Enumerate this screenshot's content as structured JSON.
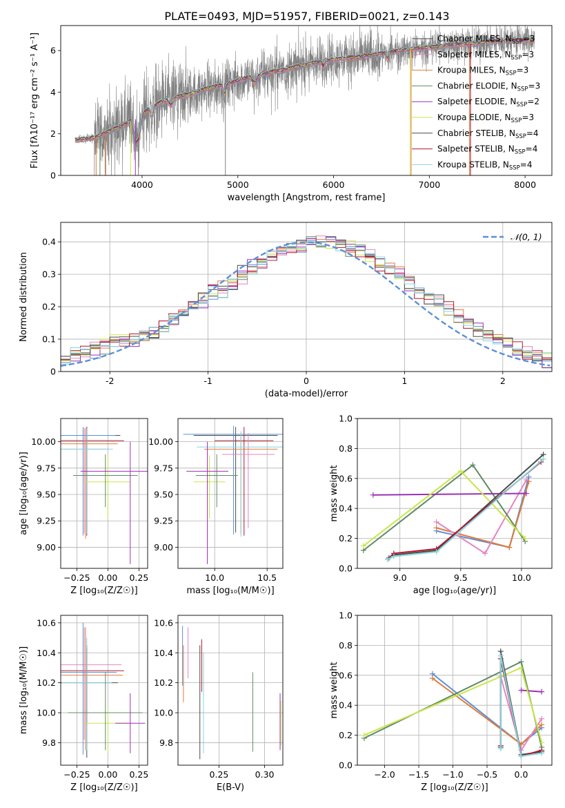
{
  "figure": {
    "title": "PLATE=0493, MJD=51957, FIBERID=0021, z=0.143"
  },
  "colors": {
    "c0": "#5b8fd6",
    "c1": "#e07b39",
    "c2": "#e584c0",
    "c3": "#5f8a63",
    "c4": "#9b2fb5",
    "c5": "#c8e64a",
    "c6": "#4a4a4a",
    "c7": "#b3172b",
    "c8": "#85d6df",
    "observed": "#808080",
    "gauss": "#5b8fd6"
  },
  "chart_data": [
    {
      "id": "spectrum",
      "type": "line",
      "xlabel": "wavelength [Angstrom, rest frame]",
      "ylabel": "Flux [fλ10⁻¹⁷ erg cm⁻² s⁻¹ A⁻¹]",
      "xlim": [
        3150,
        8280
      ],
      "ylim": [
        0,
        7.2
      ],
      "xticks": [
        4000,
        5000,
        6000,
        7000,
        8000
      ],
      "yticks": [
        0,
        2,
        4,
        6
      ],
      "grid": false,
      "legend_position": "top-right",
      "legend": [
        {
          "label": "Chabrier MILES, N",
          "sub": "SSP",
          "suffix": "=3",
          "color": "c6"
        },
        {
          "label": "Salpeter MILES, N",
          "sub": "SSP",
          "suffix": "=3",
          "color": "c2"
        },
        {
          "label": "Kroupa MILES, N",
          "sub": "SSP",
          "suffix": "=3",
          "color": "c1"
        },
        {
          "label": "Chabrier ELODIE, N",
          "sub": "SSP",
          "suffix": "=3",
          "color": "c3"
        },
        {
          "label": "Salpeter ELODIE, N",
          "sub": "SSP",
          "suffix": "=2",
          "color": "c4"
        },
        {
          "label": "Kroupa ELODIE, N",
          "sub": "SSP",
          "suffix": "=3",
          "color": "c5"
        },
        {
          "label": "Chabrier STELIB, N",
          "sub": "SSP",
          "suffix": "=4",
          "color": "c6"
        },
        {
          "label": "Salpeter STELIB, N",
          "sub": "SSP",
          "suffix": "=4",
          "color": "c7"
        },
        {
          "label": "Kroupa STELIB, N",
          "sub": "SSP",
          "suffix": "=4",
          "color": "c8"
        }
      ],
      "continuum_wavelength": [
        3300,
        3500,
        3700,
        3900,
        4100,
        4300,
        4500,
        4700,
        4900,
        5100,
        5300,
        5500,
        5700,
        5900,
        6100,
        6300,
        6500,
        6700,
        6900,
        7100,
        7300,
        7500,
        7700,
        7900,
        8100
      ],
      "continuum_flux": [
        1.7,
        1.8,
        2.2,
        2.6,
        3.3,
        3.7,
        3.9,
        4.2,
        4.4,
        4.7,
        4.9,
        5.1,
        5.3,
        5.5,
        5.6,
        5.7,
        5.85,
        6.0,
        6.1,
        6.2,
        6.3,
        6.35,
        6.45,
        6.5,
        6.5
      ]
    },
    {
      "id": "residuals",
      "type": "line",
      "xlabel": "(data-model)/error",
      "ylabel": "Normed distribution",
      "xlim": [
        -2.5,
        2.5
      ],
      "ylim": [
        0,
        0.46
      ],
      "xticks": [
        -2,
        -1,
        0,
        1,
        2
      ],
      "yticks": [
        0.0,
        0.1,
        0.2,
        0.3,
        0.4
      ],
      "grid": true,
      "legend_position": "top-right",
      "legend_label": "𝒩(0, 1)",
      "histogram_bin_width": 0.1,
      "histogram_ref_values": [
        0.04,
        0.05,
        0.06,
        0.07,
        0.08,
        0.09,
        0.1,
        0.1,
        0.11,
        0.12,
        0.14,
        0.16,
        0.18,
        0.2,
        0.22,
        0.24,
        0.25,
        0.27,
        0.3,
        0.32,
        0.34,
        0.36,
        0.37,
        0.38,
        0.39,
        0.4,
        0.4,
        0.4,
        0.39,
        0.38,
        0.37,
        0.36,
        0.34,
        0.32,
        0.3,
        0.28,
        0.25,
        0.23,
        0.21,
        0.19,
        0.17,
        0.15,
        0.13,
        0.11,
        0.1,
        0.09,
        0.07,
        0.06,
        0.05,
        0.04
      ]
    },
    {
      "id": "age_vs_Z",
      "type": "errorbar",
      "xlabel": "Z [log₁₀(Z/Z☉)]",
      "ylabel": "age  [log₁₀(age/yr)]",
      "xlim": [
        -0.38,
        0.32
      ],
      "ylim": [
        8.8,
        10.22
      ],
      "xticks": [
        -0.25,
        0.0,
        0.25
      ],
      "xticklabels": [
        "−0.25",
        "0.00",
        "0.25"
      ],
      "yticks": [
        9.0,
        9.25,
        9.5,
        9.75,
        10.0
      ],
      "yticklabels": [
        "9.00",
        "9.25",
        "9.50",
        "9.75",
        "10.00"
      ],
      "grid": true,
      "points": [
        {
          "x": -0.17,
          "y": 10.06,
          "xerr": 0.27,
          "yerr_low": 0.92,
          "yerr_high": 0.08,
          "color": "c6"
        },
        {
          "x": -0.17,
          "y": 10.01,
          "xerr": 0.3,
          "yerr_low": 0.9,
          "yerr_high": 0.13,
          "color": "c7"
        },
        {
          "x": -0.19,
          "y": 9.93,
          "xerr": 0.2,
          "yerr_low": 0.8,
          "yerr_high": 0.2,
          "color": "c2"
        },
        {
          "x": -0.18,
          "y": 9.98,
          "xerr": 0.26,
          "yerr_low": 0.9,
          "yerr_high": 0.15,
          "color": "c1"
        },
        {
          "x": -0.2,
          "y": 10.06,
          "xerr": 0.26,
          "yerr_low": 0.95,
          "yerr_high": 0.08,
          "color": "c0"
        },
        {
          "x": -0.17,
          "y": 9.93,
          "xerr": 0.21,
          "yerr_low": 0.8,
          "yerr_high": 0.2,
          "color": "c8"
        },
        {
          "x": 0.0,
          "y": 9.62,
          "xerr": 0.18,
          "yerr_low": 0.35,
          "yerr_high": 0.25,
          "color": "c5"
        },
        {
          "x": -0.02,
          "y": 9.68,
          "xerr": 0.26,
          "yerr_low": 0.3,
          "yerr_high": 0.2,
          "color": "c3"
        },
        {
          "x": 0.18,
          "y": 9.72,
          "xerr": 0.4,
          "yerr_low": 0.88,
          "yerr_high": 0.28,
          "color": "c4"
        }
      ]
    },
    {
      "id": "age_vs_mass",
      "type": "errorbar",
      "xlabel": "mass [log₁₀(M/M☉)]",
      "ylabel": "",
      "xlim": [
        9.65,
        10.65
      ],
      "ylim": [
        8.8,
        10.22
      ],
      "xticks": [
        10.0,
        10.5
      ],
      "xticklabels": [
        "10.0",
        "10.5"
      ],
      "yticks": [
        9.0,
        9.25,
        9.5,
        9.75,
        10.0
      ],
      "yticklabels": [
        "9.00",
        "9.25",
        "9.50",
        "9.75",
        "10.00"
      ],
      "grid": true,
      "points": [
        {
          "x": 10.2,
          "y": 10.06,
          "xerr": 0.4,
          "yerr_low": 0.92,
          "yerr_high": 0.08,
          "color": "c6"
        },
        {
          "x": 10.28,
          "y": 10.01,
          "xerr": 0.28,
          "yerr_low": 0.9,
          "yerr_high": 0.13,
          "color": "c7"
        },
        {
          "x": 10.32,
          "y": 9.88,
          "xerr": 0.25,
          "yerr_low": 0.7,
          "yerr_high": 0.2,
          "color": "c2"
        },
        {
          "x": 10.25,
          "y": 9.93,
          "xerr": 0.35,
          "yerr_low": 0.8,
          "yerr_high": 0.15,
          "color": "c1"
        },
        {
          "x": 10.18,
          "y": 10.07,
          "xerr": 0.48,
          "yerr_low": 0.95,
          "yerr_high": 0.08,
          "color": "c0"
        },
        {
          "x": 10.25,
          "y": 9.95,
          "xerr": 0.42,
          "yerr_low": 0.85,
          "yerr_high": 0.15,
          "color": "c8"
        },
        {
          "x": 9.95,
          "y": 9.62,
          "xerr": 0.15,
          "yerr_low": 0.35,
          "yerr_high": 0.25,
          "color": "c5"
        },
        {
          "x": 10.02,
          "y": 9.68,
          "xerr": 0.2,
          "yerr_low": 0.3,
          "yerr_high": 0.2,
          "color": "c3"
        },
        {
          "x": 9.93,
          "y": 9.72,
          "xerr": 0.2,
          "yerr_low": 0.88,
          "yerr_high": 0.28,
          "color": "c4"
        }
      ]
    },
    {
      "id": "weight_vs_age",
      "type": "line",
      "xlabel": "age  [log₁₀(age/yr)]",
      "ylabel": "mass weight",
      "xlim": [
        8.65,
        10.25
      ],
      "ylim": [
        0,
        1.0
      ],
      "xticks": [
        9.0,
        9.5,
        10.0
      ],
      "xticklabels": [
        "9.0",
        "9.5",
        "10.0"
      ],
      "yticks": [
        0.0,
        0.2,
        0.4,
        0.6,
        0.8,
        1.0
      ],
      "yticklabels": [
        "0.0",
        "0.2",
        "0.4",
        "0.6",
        "0.8",
        "1.0"
      ],
      "grid": true,
      "series": [
        {
          "color": "c0",
          "x": [
            9.3,
            9.9,
            10.06
          ],
          "y": [
            0.25,
            0.14,
            0.61
          ]
        },
        {
          "color": "c1",
          "x": [
            9.3,
            9.9,
            10.06
          ],
          "y": [
            0.27,
            0.14,
            0.58
          ]
        },
        {
          "color": "c2",
          "x": [
            9.3,
            9.7,
            10.04
          ],
          "y": [
            0.31,
            0.1,
            0.59
          ]
        },
        {
          "color": "c3",
          "x": [
            8.7,
            9.6,
            10.03
          ],
          "y": [
            0.12,
            0.69,
            0.18
          ]
        },
        {
          "color": "c4",
          "x": [
            8.78,
            10.04
          ],
          "y": [
            0.49,
            0.5
          ]
        },
        {
          "color": "c5",
          "x": [
            8.7,
            9.5,
            10.03
          ],
          "y": [
            0.15,
            0.65,
            0.2
          ]
        },
        {
          "color": "c6",
          "x": [
            8.91,
            8.95,
            9.3,
            10.18
          ],
          "y": [
            0.07,
            0.09,
            0.12,
            0.76
          ]
        },
        {
          "color": "c7",
          "x": [
            8.9,
            8.95,
            9.3,
            10.16
          ],
          "y": [
            0.06,
            0.1,
            0.13,
            0.71
          ]
        },
        {
          "color": "c8",
          "x": [
            8.9,
            8.95,
            9.3,
            10.18
          ],
          "y": [
            0.06,
            0.08,
            0.11,
            0.73
          ]
        }
      ]
    },
    {
      "id": "mass_vs_Z",
      "type": "errorbar",
      "xlabel": "Z [log₁₀(Z/Z☉)]",
      "ylabel": "mass [log₁₀(M/M☉)]",
      "xlim": [
        -0.38,
        0.32
      ],
      "ylim": [
        9.65,
        10.65
      ],
      "xticks": [
        -0.25,
        0.0,
        0.25
      ],
      "xticklabels": [
        "−0.25",
        "0.00",
        "0.25"
      ],
      "yticks": [
        9.8,
        10.0,
        10.2,
        10.4,
        10.6
      ],
      "yticklabels": [
        "9.8",
        "10.0",
        "10.2",
        "10.4",
        "10.6"
      ],
      "grid": true,
      "points": [
        {
          "x": -0.17,
          "y": 10.2,
          "xerr": 0.25,
          "yerr_low": 0.5,
          "yerr_high": 0.25,
          "color": "c6"
        },
        {
          "x": -0.17,
          "y": 10.28,
          "xerr": 0.3,
          "yerr_low": 0.35,
          "yerr_high": 0.15,
          "color": "c7"
        },
        {
          "x": -0.19,
          "y": 10.32,
          "xerr": 0.3,
          "yerr_low": 0.5,
          "yerr_high": 0.25,
          "color": "c2"
        },
        {
          "x": -0.18,
          "y": 10.25,
          "xerr": 0.3,
          "yerr_low": 0.5,
          "yerr_high": 0.32,
          "color": "c1"
        },
        {
          "x": -0.2,
          "y": 10.27,
          "xerr": 0.27,
          "yerr_low": 0.55,
          "yerr_high": 0.33,
          "color": "c0"
        },
        {
          "x": -0.17,
          "y": 10.2,
          "xerr": 0.2,
          "yerr_low": 0.45,
          "yerr_high": 0.3,
          "color": "c8"
        },
        {
          "x": 0.0,
          "y": 9.93,
          "xerr": 0.18,
          "yerr_low": 0.2,
          "yerr_high": 0.1,
          "color": "c5"
        },
        {
          "x": -0.02,
          "y": 10.0,
          "xerr": 0.3,
          "yerr_low": 0.25,
          "yerr_high": 0.27,
          "color": "c3"
        },
        {
          "x": 0.18,
          "y": 9.93,
          "xerr": 0.12,
          "yerr_low": 0.2,
          "yerr_high": 0.2,
          "color": "c4"
        }
      ]
    },
    {
      "id": "mass_vs_ebv",
      "type": "errorbar",
      "xlabel": "E(B-V)",
      "ylabel": "",
      "xlim": [
        0.205,
        0.32
      ],
      "ylim": [
        9.65,
        10.65
      ],
      "xticks": [
        0.25,
        0.3
      ],
      "xticklabels": [
        "0.25",
        "0.30"
      ],
      "yticks": [
        9.8,
        10.0,
        10.2,
        10.4,
        10.6
      ],
      "yticklabels": [
        "9.8",
        "10.0",
        "10.2",
        "10.4",
        "10.6"
      ],
      "grid": true,
      "points": [
        {
          "x": 0.21,
          "y": 10.38,
          "xerr": 0,
          "yerr_low": 0.2,
          "yerr_high": 0.2,
          "color": "c0"
        },
        {
          "x": 0.211,
          "y": 10.25,
          "xerr": 0,
          "yerr_low": 0.18,
          "yerr_high": 0.2,
          "color": "c1"
        },
        {
          "x": 0.216,
          "y": 10.43,
          "xerr": 0,
          "yerr_low": 0.2,
          "yerr_high": 0.14,
          "color": "c2"
        },
        {
          "x": 0.229,
          "y": 10.08,
          "xerr": 0,
          "yerr_low": 0.39,
          "yerr_high": 0.37,
          "color": "c6"
        },
        {
          "x": 0.231,
          "y": 10.3,
          "xerr": 0,
          "yerr_low": 0.16,
          "yerr_high": 0.19,
          "color": "c7"
        },
        {
          "x": 0.233,
          "y": 10.05,
          "xerr": 0,
          "yerr_low": 0.32,
          "yerr_high": 0.35,
          "color": "c8"
        },
        {
          "x": 0.287,
          "y": 10.0,
          "xerr": 0,
          "yerr_low": 0.26,
          "yerr_high": 0.27,
          "color": "c3"
        },
        {
          "x": 0.317,
          "y": 9.93,
          "xerr": 0,
          "yerr_low": 0.18,
          "yerr_high": 0.2,
          "color": "c4"
        },
        {
          "x": 0.318,
          "y": 9.9,
          "xerr": 0,
          "yerr_low": 0.12,
          "yerr_high": 0.18,
          "color": "c5"
        }
      ]
    },
    {
      "id": "weight_vs_Z",
      "type": "line",
      "xlabel": "Z [log₁₀(Z/Z☉)]",
      "ylabel": "mass weight",
      "xlim": [
        -2.4,
        0.45
      ],
      "ylim": [
        0,
        1.0
      ],
      "xticks": [
        -2.0,
        -1.5,
        -1.0,
        -0.5,
        0.0
      ],
      "xticklabels": [
        "−2.0",
        "−1.5",
        "−1.0",
        "−0.5",
        "0.0"
      ],
      "yticks": [
        0.0,
        0.2,
        0.4,
        0.6,
        0.8,
        1.0
      ],
      "yticklabels": [
        "0.0",
        "0.2",
        "0.4",
        "0.6",
        "0.8",
        "1.0"
      ],
      "grid": true,
      "series": [
        {
          "color": "c0",
          "x": [
            -1.3,
            0.0,
            0.3
          ],
          "y": [
            0.61,
            0.14,
            0.25
          ]
        },
        {
          "color": "c1",
          "x": [
            -1.3,
            0.0,
            0.3
          ],
          "y": [
            0.58,
            0.14,
            0.27
          ]
        },
        {
          "color": "c2",
          "x": [
            -0.3,
            0.0,
            0.3
          ],
          "y": [
            0.59,
            0.1,
            0.31
          ]
        },
        {
          "color": "c3",
          "x": [
            -2.3,
            0.0,
            0.3
          ],
          "y": [
            0.18,
            0.69,
            0.12
          ]
        },
        {
          "color": "c4",
          "x": [
            0.0,
            0.3
          ],
          "y": [
            0.5,
            0.49
          ]
        },
        {
          "color": "c5",
          "x": [
            -2.3,
            0.0,
            0.3
          ],
          "y": [
            0.2,
            0.65,
            0.15
          ]
        },
        {
          "color": "c6",
          "x": [
            -0.3,
            -0.3,
            0.0,
            0.3
          ],
          "y": [
            0.12,
            0.76,
            0.07,
            0.09
          ]
        },
        {
          "color": "c7",
          "x": [
            -0.3,
            -0.3,
            0.0,
            0.3
          ],
          "y": [
            0.13,
            0.71,
            0.06,
            0.1
          ]
        },
        {
          "color": "c8",
          "x": [
            -0.3,
            -0.3,
            0.0,
            0.3
          ],
          "y": [
            0.11,
            0.73,
            0.06,
            0.08
          ]
        }
      ]
    }
  ]
}
